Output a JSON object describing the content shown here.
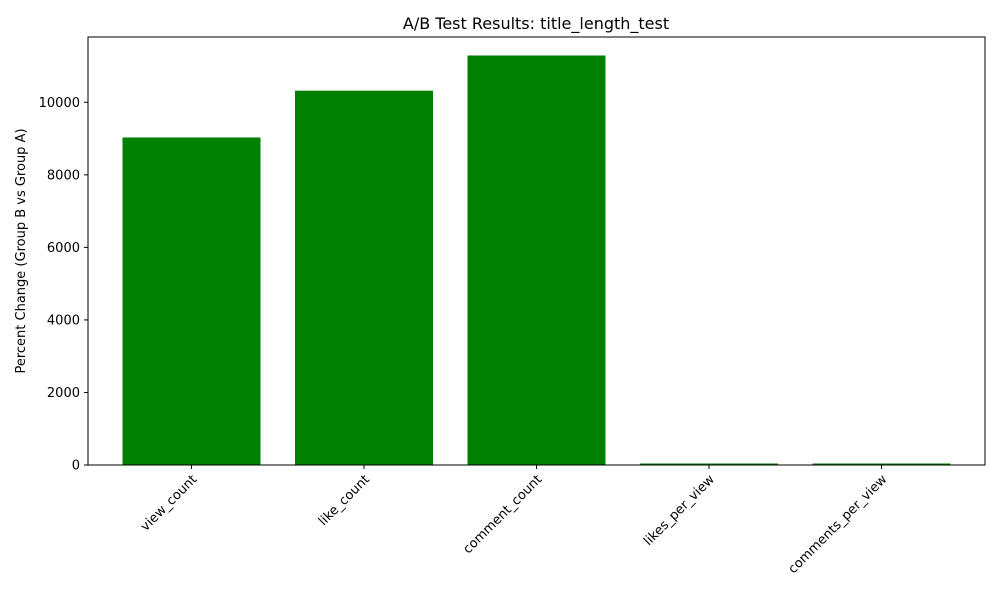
{
  "chart_data": {
    "type": "bar",
    "title": "A/B Test Results: title_length_test",
    "xlabel": "",
    "ylabel": "Percent Change (Group B vs Group A)",
    "categories": [
      "view_count",
      "like_count",
      "comment_count",
      "likes_per_view",
      "comments_per_view"
    ],
    "values": [
      9030,
      10320,
      11290,
      15,
      12
    ],
    "ylim": [
      0,
      11800
    ],
    "yticks": [
      0,
      2000,
      4000,
      6000,
      8000,
      10000
    ],
    "bar_color": "#008000",
    "grid": false,
    "legend": "none"
  }
}
